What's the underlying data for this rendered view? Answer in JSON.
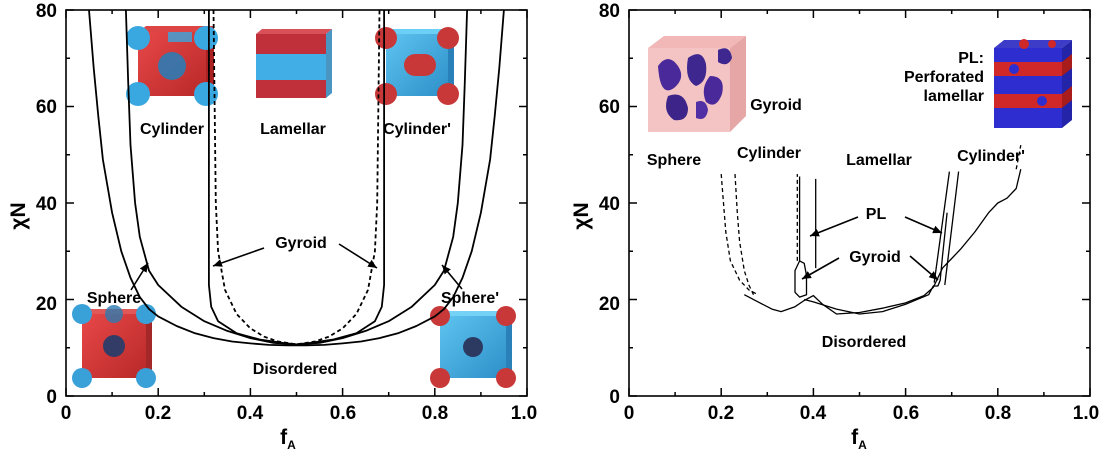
{
  "chart_data": [
    {
      "type": "line",
      "title": "",
      "xlabel": "f",
      "xlabel_sub": "A",
      "ylabel": "χN",
      "xlim": [
        0,
        1.0
      ],
      "ylim": [
        0,
        80
      ],
      "xticks": [
        "0",
        "0.2",
        "0.4",
        "0.6",
        "0.8",
        "1.0"
      ],
      "yticks": [
        "0",
        "20",
        "40",
        "60",
        "80"
      ],
      "series": [
        {
          "style": "solid",
          "x": [
            0.05,
            0.06,
            0.07,
            0.08,
            0.1,
            0.12,
            0.14,
            0.16,
            0.18,
            0.2,
            0.24,
            0.28,
            0.32,
            0.36,
            0.4,
            0.44,
            0.48,
            0.5,
            0.52,
            0.56,
            0.6,
            0.64,
            0.68,
            0.72,
            0.76,
            0.8,
            0.82,
            0.84,
            0.86,
            0.88,
            0.9,
            0.92,
            0.93,
            0.94,
            0.95
          ],
          "y": [
            80,
            68,
            58,
            49,
            38,
            30,
            24.5,
            20.5,
            18,
            16.5,
            14.5,
            13,
            12,
            11.3,
            10.9,
            10.6,
            10.5,
            10.5,
            10.5,
            10.6,
            10.9,
            11.3,
            12,
            13,
            14.5,
            16.5,
            18,
            20.5,
            24.5,
            30,
            38,
            49,
            58,
            68,
            80
          ]
        },
        {
          "style": "solid",
          "x": [
            0.13,
            0.135,
            0.14,
            0.15,
            0.16,
            0.18,
            0.2,
            0.25,
            0.3,
            0.35,
            0.4,
            0.45,
            0.5,
            0.55,
            0.6,
            0.65,
            0.7,
            0.75,
            0.8,
            0.82,
            0.84,
            0.85,
            0.86,
            0.865,
            0.87
          ],
          "y": [
            80,
            65,
            52,
            40,
            33,
            26,
            23,
            18.5,
            15.5,
            13.5,
            12,
            11,
            10.7,
            11,
            12,
            13.5,
            15.5,
            18.5,
            23,
            26,
            33,
            40,
            52,
            65,
            80
          ]
        },
        {
          "style": "solid",
          "x": [
            0.31,
            0.31,
            0.315,
            0.33,
            0.37,
            0.42,
            0.47,
            0.5,
            0.53,
            0.58,
            0.63,
            0.67,
            0.685,
            0.69,
            0.69
          ],
          "y": [
            80,
            23,
            18.5,
            15.5,
            13,
            11.7,
            11,
            10.7,
            11,
            11.7,
            13,
            15.5,
            18.5,
            23,
            80
          ]
        },
        {
          "style": "dashed",
          "x": [
            0.32,
            0.325,
            0.33,
            0.345,
            0.37,
            0.4,
            0.43,
            0.46,
            0.5,
            0.54,
            0.57,
            0.6,
            0.63,
            0.655,
            0.67,
            0.675,
            0.68
          ],
          "y": [
            80,
            40,
            30,
            22,
            17,
            14,
            12.3,
            11.3,
            10.7,
            11.3,
            12.3,
            14,
            17,
            22,
            30,
            40,
            80
          ]
        }
      ],
      "labels": [
        "Cylinder",
        "Lamellar",
        "Cylinder'",
        "Gyroid",
        "Sphere",
        "Sphere'",
        "Disordered"
      ]
    },
    {
      "type": "line",
      "title": "",
      "xlabel": "f",
      "xlabel_sub": "A",
      "ylabel": "χN",
      "xlim": [
        0,
        1.0
      ],
      "ylim": [
        0,
        80
      ],
      "xticks": [
        "0",
        "0.2",
        "0.4",
        "0.6",
        "0.8",
        "1.0"
      ],
      "yticks": [
        "0",
        "20",
        "40",
        "60",
        "80"
      ],
      "series": [
        {
          "style": "solid",
          "x": [
            0.25,
            0.28,
            0.31,
            0.33,
            0.36,
            0.38,
            0.4,
            0.42,
            0.45,
            0.5,
            0.55,
            0.6,
            0.64,
            0.66,
            0.67,
            0.68,
            0.7,
            0.72,
            0.75,
            0.78,
            0.8,
            0.82,
            0.84,
            0.85
          ],
          "y": [
            21,
            19.5,
            18,
            17.5,
            18.5,
            19.8,
            20.8,
            19,
            17,
            17.3,
            18.2,
            19.3,
            20.8,
            22.5,
            24.5,
            26.5,
            28.5,
            30.5,
            34,
            38,
            40,
            41,
            43,
            47
          ]
        },
        {
          "style": "solid",
          "x": [
            0.38,
            0.4,
            0.45,
            0.5,
            0.55,
            0.6,
            0.65,
            0.66,
            0.67,
            0.675,
            0.68,
            0.69
          ],
          "y": [
            20,
            19.5,
            18,
            17,
            17.5,
            19,
            21,
            22.8,
            22.8,
            24,
            29,
            38
          ]
        },
        {
          "style": "solid",
          "x": [
            0.37,
            0.38,
            0.385,
            0.385,
            0.37,
            0.36,
            0.36,
            0.37
          ],
          "y": [
            28,
            27.5,
            25,
            21,
            20.5,
            21.5,
            26,
            28
          ]
        },
        {
          "style": "solid",
          "x": [
            0.37,
            0.37
          ],
          "y": [
            28,
            45.5
          ]
        },
        {
          "style": "solid",
          "x": [
            0.405,
            0.405
          ],
          "y": [
            26.5,
            45
          ]
        },
        {
          "style": "solid",
          "x": [
            0.662,
            0.695
          ],
          "y": [
            23.5,
            46.5
          ]
        },
        {
          "style": "solid",
          "x": [
            0.685,
            0.715
          ],
          "y": [
            23,
            46.5
          ]
        },
        {
          "style": "dashed",
          "x": [
            0.2,
            0.21,
            0.22,
            0.24,
            0.26,
            0.28
          ],
          "y": [
            46,
            34,
            28,
            24,
            22,
            21
          ]
        },
        {
          "style": "dashed",
          "x": [
            0.23,
            0.235,
            0.24,
            0.25,
            0.26,
            0.27
          ],
          "y": [
            46,
            38,
            32,
            26,
            23,
            21
          ]
        },
        {
          "style": "dashed",
          "x": [
            0.365,
            0.365
          ],
          "y": [
            28,
            46
          ]
        },
        {
          "style": "dashed",
          "x": [
            0.84,
            0.85
          ],
          "y": [
            47,
            52
          ]
        }
      ],
      "labels": [
        "Sphere",
        "Cylinder",
        "Lamellar",
        "Cylinder'",
        "PL",
        "Gyroid",
        "Disordered",
        "Gyroid",
        "PL:",
        "Perforated",
        "lamellar"
      ]
    }
  ]
}
